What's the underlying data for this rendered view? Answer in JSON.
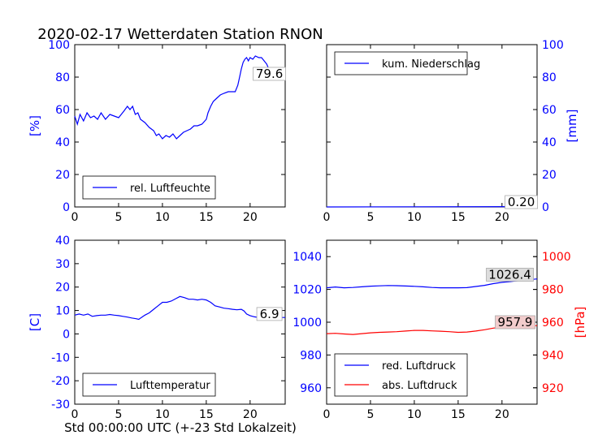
{
  "page_title": "2020-02-17 Wetterdaten Station RNON",
  "xlabel_bottom": "Std 00:00:00 UTC (+-23 Std Lokalzeit)",
  "colors": {
    "blue": "#0000ff",
    "red": "#ff0000",
    "black": "#000000",
    "box_fill": "#dddddd",
    "box_fill_red": "#f2cccc"
  },
  "chart_data": [
    {
      "id": "humidity",
      "type": "line",
      "ylabel": "[%]",
      "ylabel_side": "left",
      "ylabel_color": "#0000ff",
      "xlim": [
        0,
        24
      ],
      "ylim": [
        0,
        100
      ],
      "xticks": [
        0,
        5,
        10,
        15,
        20
      ],
      "yticks": [
        0,
        20,
        40,
        60,
        80,
        100
      ],
      "legend": {
        "placement": "lower-left"
      },
      "series": [
        {
          "name": "rel. Luftfeuchte",
          "color": "#0000ff",
          "x": [
            0,
            0.3,
            0.6,
            1,
            1.4,
            1.8,
            2.2,
            2.6,
            3,
            3.5,
            4,
            4.5,
            5,
            5.3,
            5.6,
            6,
            6.3,
            6.6,
            6.9,
            7.2,
            7.5,
            8,
            8.5,
            9,
            9.3,
            9.6,
            10,
            10.4,
            10.8,
            11.2,
            11.6,
            12,
            12.4,
            12.8,
            13.2,
            13.6,
            14,
            14.5,
            15,
            15.2,
            15.5,
            15.8,
            16.2,
            16.6,
            17,
            17.5,
            18,
            18.3,
            18.6,
            18.8,
            19,
            19.2,
            19.4,
            19.6,
            19.8,
            20,
            20.3,
            20.6,
            21,
            21.3,
            21.6,
            21.9,
            22.2,
            22.5,
            22.8,
            23.1,
            23.4,
            23.7,
            24
          ],
          "y": [
            56,
            51,
            57,
            53,
            58,
            55,
            56,
            54,
            58,
            54,
            57,
            56,
            55,
            57,
            59,
            62,
            60,
            62,
            57,
            58,
            54,
            52,
            49,
            47,
            44,
            45,
            42,
            44,
            43,
            45,
            42,
            44,
            46,
            47,
            48,
            50,
            50,
            51,
            54,
            58,
            62,
            65,
            67,
            69,
            70,
            71,
            71,
            71,
            75,
            80,
            85,
            89,
            91,
            92,
            90,
            92,
            91,
            93,
            92,
            92,
            90,
            88,
            84,
            82,
            81,
            80,
            82,
            80,
            80
          ]
        }
      ],
      "annotations": [
        {
          "text": "79.6",
          "x": 22.2,
          "y": 82,
          "color": "#000000"
        }
      ]
    },
    {
      "id": "precipitation",
      "type": "line",
      "ylabel": "[mm]",
      "ylabel_side": "right",
      "ylabel_color": "#0000ff",
      "xlim": [
        0,
        24
      ],
      "ylim": [
        0,
        100
      ],
      "xticks": [
        0,
        5,
        10,
        15,
        20
      ],
      "yticks": [
        0,
        20,
        40,
        60,
        80,
        100
      ],
      "legend": {
        "placement": "upper-left"
      },
      "series": [
        {
          "name": "kum. Niederschlag",
          "color": "#0000ff",
          "x": [
            0,
            24
          ],
          "y": [
            0,
            0.2
          ]
        }
      ],
      "annotations": [
        {
          "text": "0.20",
          "x": 22.2,
          "y": 3,
          "color": "#000000"
        }
      ]
    },
    {
      "id": "temperature",
      "type": "line",
      "ylabel": "[C]",
      "ylabel_side": "left",
      "ylabel_color": "#0000ff",
      "xlim": [
        0,
        24
      ],
      "ylim": [
        -30,
        40
      ],
      "xticks": [
        0,
        5,
        10,
        15,
        20
      ],
      "yticks": [
        -30,
        -20,
        -10,
        0,
        10,
        20,
        30,
        40
      ],
      "legend": {
        "placement": "lower-left"
      },
      "series": [
        {
          "name": "Lufttemperatur",
          "color": "#0000ff",
          "x": [
            0,
            0.5,
            1,
            1.5,
            2,
            2.5,
            3,
            3.5,
            4,
            4.5,
            5,
            5.5,
            6,
            6.5,
            7,
            7.3,
            7.6,
            8,
            8.5,
            9,
            9.5,
            10,
            10.5,
            11,
            11.5,
            12,
            12.5,
            13,
            13.5,
            14,
            14.5,
            15,
            15.5,
            16,
            16.5,
            17,
            17.5,
            18,
            18.5,
            19,
            19.3,
            19.6,
            20,
            20.5,
            21,
            21.5,
            22,
            22.5,
            23,
            23.5,
            24
          ],
          "y": [
            8,
            8.5,
            8,
            8.5,
            7.5,
            7.8,
            8,
            8,
            8.3,
            8,
            7.8,
            7.5,
            7.2,
            6.8,
            6.5,
            6.2,
            7,
            8,
            9,
            10.5,
            12,
            13.5,
            13.5,
            14,
            15,
            16,
            15.5,
            14.8,
            14.8,
            14.5,
            14.8,
            14.5,
            13.5,
            12,
            11.5,
            11,
            10.8,
            10.5,
            10.3,
            10.5,
            9.8,
            8.5,
            7.8,
            7.3,
            7,
            7,
            6.9,
            7,
            7,
            7,
            7
          ]
        }
      ],
      "annotations": [
        {
          "text": "6.9",
          "x": 22.2,
          "y": 8.5,
          "color": "#000000"
        }
      ]
    },
    {
      "id": "pressure",
      "type": "line",
      "ylabel": "[hPa]",
      "ylabel_side": "right",
      "ylabel_color": "#ff0000",
      "xlim": [
        0,
        24
      ],
      "ylim": [
        950,
        1050
      ],
      "ylim_right": [
        910,
        1010
      ],
      "xticks": [
        0,
        5,
        10,
        15,
        20
      ],
      "yticks": [
        960,
        980,
        1000,
        1020,
        1040
      ],
      "yticks_right": [
        920,
        940,
        960,
        980,
        1000
      ],
      "legend": {
        "placement": "lower-left"
      },
      "series": [
        {
          "name": "red. Luftdruck",
          "color": "#0000ff",
          "axis": "left",
          "x": [
            0,
            1,
            2,
            3,
            4,
            5,
            6,
            7,
            8,
            9,
            10,
            11,
            12,
            13,
            14,
            15,
            16,
            17,
            18,
            19,
            20,
            21,
            22,
            23,
            24
          ],
          "y": [
            1021,
            1021.5,
            1021,
            1021.2,
            1021.6,
            1022,
            1022.2,
            1022.4,
            1022.3,
            1022.1,
            1021.9,
            1021.6,
            1021.2,
            1021,
            1021,
            1021,
            1021.1,
            1021.8,
            1022.5,
            1023.5,
            1024.3,
            1024.8,
            1025.4,
            1025.9,
            1026.4
          ]
        },
        {
          "name": "abs. Luftdruck",
          "color": "#ff0000",
          "axis": "right",
          "x": [
            0,
            1,
            2,
            3,
            4,
            5,
            6,
            7,
            8,
            9,
            10,
            11,
            12,
            13,
            14,
            15,
            16,
            17,
            18,
            19,
            20,
            21,
            22,
            23,
            24
          ],
          "y": [
            953,
            953.2,
            952.8,
            952.5,
            953,
            953.5,
            953.8,
            954,
            954.2,
            954.6,
            955,
            955,
            954.7,
            954.5,
            954.2,
            953.8,
            954,
            954.6,
            955.4,
            956.4,
            957,
            957,
            957.3,
            957.6,
            957.9
          ]
        }
      ],
      "annotations": [
        {
          "text": "1026.4",
          "x": 20.9,
          "y": 1029,
          "axis": "left",
          "color": "#000000",
          "box": "#dddddd"
        },
        {
          "text": "957.9",
          "x": 21.5,
          "y": 960,
          "axis": "right",
          "color": "#000000",
          "box": "#f2cccc"
        }
      ]
    }
  ]
}
